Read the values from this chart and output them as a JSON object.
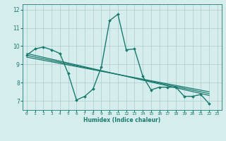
{
  "xlabel": "Humidex (Indice chaleur)",
  "ylabel": "",
  "xlim": [
    -0.5,
    23.5
  ],
  "ylim": [
    6.5,
    12.3
  ],
  "background_color": "#d6eded",
  "grid_color": "#aacece",
  "line_color": "#1a7a6e",
  "xticks": [
    0,
    1,
    2,
    3,
    4,
    5,
    6,
    7,
    8,
    9,
    10,
    11,
    12,
    13,
    14,
    15,
    16,
    17,
    18,
    19,
    20,
    21,
    22,
    23
  ],
  "yticks": [
    7,
    8,
    9,
    10,
    11,
    12
  ],
  "series": [
    {
      "x": [
        0,
        1,
        2,
        3,
        4,
        5,
        6,
        7,
        8,
        9,
        10,
        11,
        12,
        13,
        14,
        15,
        16,
        17,
        18,
        19,
        20,
        21,
        22
      ],
      "y": [
        9.5,
        9.85,
        9.95,
        9.8,
        9.6,
        8.5,
        7.05,
        7.25,
        7.65,
        8.85,
        11.4,
        11.75,
        9.8,
        9.85,
        8.35,
        7.6,
        7.75,
        7.75,
        7.75,
        7.25,
        7.25,
        7.35,
        6.85
      ],
      "marker": "D",
      "markersize": 2.0,
      "linewidth": 1.0
    },
    {
      "x": [
        0,
        22
      ],
      "y": [
        9.6,
        7.3
      ],
      "marker": null,
      "markersize": 0,
      "linewidth": 0.9
    },
    {
      "x": [
        0,
        22
      ],
      "y": [
        9.5,
        7.4
      ],
      "marker": null,
      "markersize": 0,
      "linewidth": 0.9
    },
    {
      "x": [
        0,
        22
      ],
      "y": [
        9.4,
        7.5
      ],
      "marker": null,
      "markersize": 0,
      "linewidth": 0.9
    }
  ]
}
